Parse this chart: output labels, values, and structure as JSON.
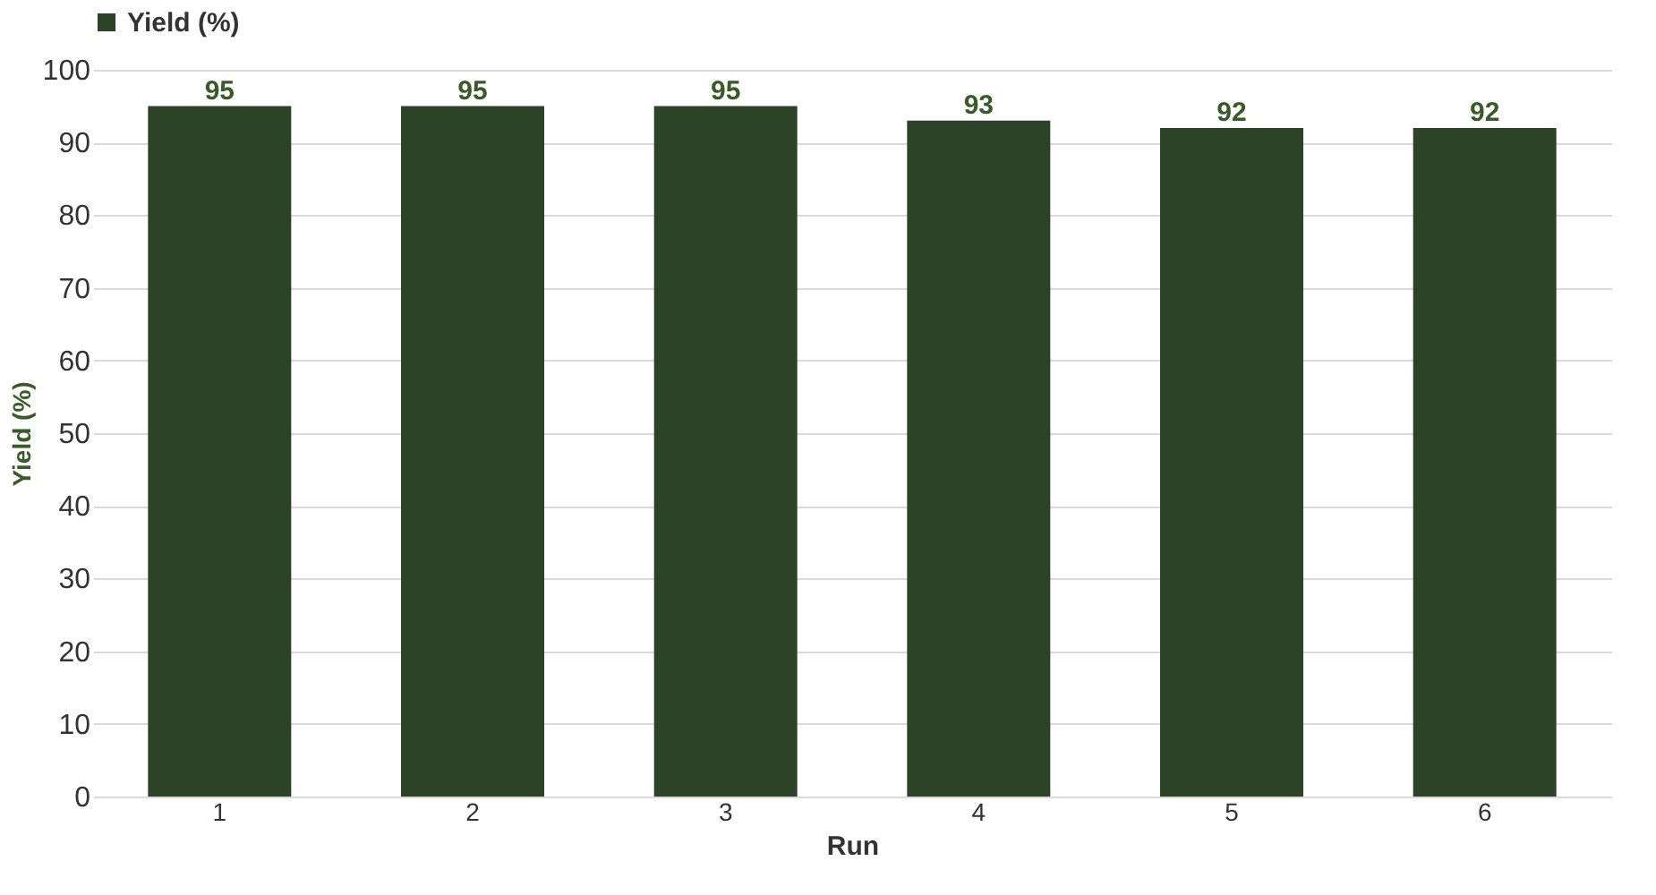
{
  "chart_data": {
    "type": "bar",
    "xlabel": "Run",
    "ylabel": "Yield (%)",
    "categories": [
      "1",
      "2",
      "3",
      "4",
      "5",
      "6"
    ],
    "series": [
      {
        "name": "Yield (%)",
        "color": "#2d4227",
        "values": [
          95,
          95,
          95,
          93,
          92,
          92
        ]
      }
    ],
    "ylim": [
      0,
      100
    ],
    "yticks": [
      0,
      10,
      20,
      30,
      40,
      50,
      60,
      70,
      80,
      90,
      100
    ],
    "grid": "y",
    "legend": "top",
    "data_labels": true
  }
}
